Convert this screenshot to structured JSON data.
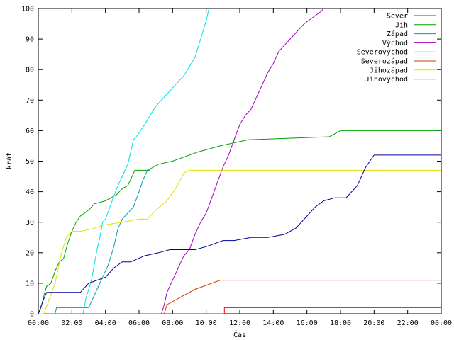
{
  "chart_data": {
    "type": "line",
    "title": "",
    "xlabel": "Čas",
    "ylabel": "krát",
    "xlim": [
      0,
      1440
    ],
    "ylim": [
      0,
      100
    ],
    "x_ticks": [
      {
        "value": 0,
        "label": "00:00"
      },
      {
        "value": 120,
        "label": "02:00"
      },
      {
        "value": 240,
        "label": "04:00"
      },
      {
        "value": 360,
        "label": "06:00"
      },
      {
        "value": 480,
        "label": "08:00"
      },
      {
        "value": 600,
        "label": "10:00"
      },
      {
        "value": 720,
        "label": "12:00"
      },
      {
        "value": 840,
        "label": "14:00"
      },
      {
        "value": 960,
        "label": "16:00"
      },
      {
        "value": 1080,
        "label": "18:00"
      },
      {
        "value": 1200,
        "label": "20:00"
      },
      {
        "value": 1320,
        "label": "22:00"
      },
      {
        "value": 1440,
        "label": "00:00"
      }
    ],
    "y_ticks": [
      {
        "value": 0,
        "label": "0"
      },
      {
        "value": 10,
        "label": "10"
      },
      {
        "value": 20,
        "label": "20"
      },
      {
        "value": 30,
        "label": "30"
      },
      {
        "value": 40,
        "label": "40"
      },
      {
        "value": 50,
        "label": "50"
      },
      {
        "value": 60,
        "label": "60"
      },
      {
        "value": 70,
        "label": "70"
      },
      {
        "value": 80,
        "label": "80"
      },
      {
        "value": 90,
        "label": "90"
      },
      {
        "value": 100,
        "label": "100"
      }
    ],
    "grid": false,
    "legend_position": "top-right",
    "series": [
      {
        "name": "Sever",
        "color": "#ff0000",
        "points": [
          [
            0,
            0
          ],
          [
            665,
            0
          ],
          [
            665,
            2
          ],
          [
            1440,
            2
          ]
        ]
      },
      {
        "name": "Jih",
        "color": "#00a000",
        "points": [
          [
            0,
            0
          ],
          [
            10,
            2
          ],
          [
            20,
            6
          ],
          [
            30,
            9
          ],
          [
            45,
            10
          ],
          [
            60,
            14
          ],
          [
            75,
            17
          ],
          [
            90,
            18
          ],
          [
            105,
            23
          ],
          [
            120,
            27
          ],
          [
            135,
            30
          ],
          [
            150,
            32
          ],
          [
            165,
            33
          ],
          [
            180,
            34
          ],
          [
            200,
            36
          ],
          [
            240,
            37
          ],
          [
            280,
            39
          ],
          [
            300,
            41
          ],
          [
            320,
            42
          ],
          [
            345,
            47
          ],
          [
            390,
            47
          ],
          [
            430,
            49
          ],
          [
            480,
            50
          ],
          [
            570,
            53
          ],
          [
            650,
            55
          ],
          [
            750,
            57
          ],
          [
            1040,
            58
          ],
          [
            1080,
            60
          ],
          [
            1440,
            60
          ]
        ]
      },
      {
        "name": "Západ",
        "color": "#00a0a0",
        "points": [
          [
            0,
            0
          ],
          [
            60,
            0
          ],
          [
            65,
            2
          ],
          [
            180,
            2
          ],
          [
            190,
            4
          ],
          [
            210,
            8
          ],
          [
            230,
            12
          ],
          [
            250,
            16
          ],
          [
            270,
            22
          ],
          [
            285,
            28
          ],
          [
            300,
            31
          ],
          [
            320,
            33
          ],
          [
            340,
            35
          ],
          [
            360,
            40
          ],
          [
            375,
            44
          ],
          [
            390,
            47
          ],
          [
            400,
            47
          ]
        ]
      },
      {
        "name": "Východ",
        "color": "#a000c0",
        "points": [
          [
            0,
            0
          ],
          [
            440,
            0
          ],
          [
            450,
            3
          ],
          [
            460,
            7
          ],
          [
            480,
            11
          ],
          [
            500,
            15
          ],
          [
            520,
            19
          ],
          [
            540,
            21
          ],
          [
            560,
            26
          ],
          [
            580,
            30
          ],
          [
            600,
            33
          ],
          [
            620,
            38
          ],
          [
            640,
            43
          ],
          [
            660,
            48
          ],
          [
            680,
            52
          ],
          [
            700,
            57
          ],
          [
            720,
            62
          ],
          [
            740,
            65
          ],
          [
            760,
            67
          ],
          [
            780,
            71
          ],
          [
            800,
            75
          ],
          [
            820,
            79
          ],
          [
            840,
            82
          ],
          [
            860,
            86
          ],
          [
            880,
            88
          ],
          [
            900,
            90
          ],
          [
            920,
            92
          ],
          [
            950,
            95
          ],
          [
            980,
            97
          ],
          [
            1010,
            99
          ],
          [
            1020,
            100
          ]
        ]
      },
      {
        "name": "Severovýchod",
        "color": "#00e0e0",
        "points": [
          [
            0,
            0
          ],
          [
            160,
            0
          ],
          [
            170,
            5
          ],
          [
            180,
            8
          ],
          [
            190,
            11
          ],
          [
            200,
            16
          ],
          [
            210,
            21
          ],
          [
            220,
            25
          ],
          [
            230,
            30
          ],
          [
            240,
            31
          ],
          [
            260,
            36
          ],
          [
            280,
            41
          ],
          [
            300,
            45
          ],
          [
            320,
            49
          ],
          [
            330,
            53
          ],
          [
            340,
            57
          ],
          [
            350,
            58
          ],
          [
            380,
            62
          ],
          [
            400,
            65
          ],
          [
            420,
            68
          ],
          [
            450,
            71
          ],
          [
            480,
            74
          ],
          [
            500,
            76
          ],
          [
            520,
            78
          ],
          [
            540,
            81
          ],
          [
            560,
            84
          ],
          [
            580,
            90
          ],
          [
            600,
            96
          ],
          [
            610,
            100
          ]
        ]
      },
      {
        "name": "Severozápad",
        "color": "#c04000",
        "points": [
          [
            0,
            0
          ],
          [
            450,
            0
          ],
          [
            460,
            3
          ],
          [
            500,
            5
          ],
          [
            560,
            8
          ],
          [
            650,
            11
          ],
          [
            1440,
            11
          ]
        ]
      },
      {
        "name": "Jihozápad",
        "color": "#e0e000",
        "points": [
          [
            0,
            0
          ],
          [
            20,
            0
          ],
          [
            40,
            5
          ],
          [
            60,
            10
          ],
          [
            80,
            19
          ],
          [
            100,
            25
          ],
          [
            120,
            27
          ],
          [
            150,
            27
          ],
          [
            200,
            28
          ],
          [
            230,
            29
          ],
          [
            300,
            30
          ],
          [
            360,
            31
          ],
          [
            390,
            31
          ],
          [
            420,
            34
          ],
          [
            460,
            37
          ],
          [
            490,
            41
          ],
          [
            520,
            46
          ],
          [
            540,
            47
          ],
          [
            1440,
            47
          ]
        ]
      },
      {
        "name": "Jihovýchod",
        "color": "#0000a0",
        "points": [
          [
            0,
            0
          ],
          [
            20,
            5
          ],
          [
            30,
            7
          ],
          [
            50,
            7
          ],
          [
            80,
            7
          ],
          [
            150,
            7
          ],
          [
            180,
            10
          ],
          [
            240,
            12
          ],
          [
            270,
            15
          ],
          [
            300,
            17
          ],
          [
            330,
            17
          ],
          [
            380,
            19
          ],
          [
            430,
            20
          ],
          [
            470,
            21
          ],
          [
            520,
            21
          ],
          [
            560,
            21
          ],
          [
            600,
            22
          ],
          [
            660,
            24
          ],
          [
            700,
            24
          ],
          [
            760,
            25
          ],
          [
            820,
            25
          ],
          [
            880,
            26
          ],
          [
            920,
            28
          ],
          [
            940,
            30
          ],
          [
            960,
            32
          ],
          [
            990,
            35
          ],
          [
            1020,
            37
          ],
          [
            1060,
            38
          ],
          [
            1100,
            38
          ],
          [
            1140,
            42
          ],
          [
            1170,
            48
          ],
          [
            1200,
            52
          ],
          [
            1440,
            52
          ]
        ]
      }
    ]
  }
}
